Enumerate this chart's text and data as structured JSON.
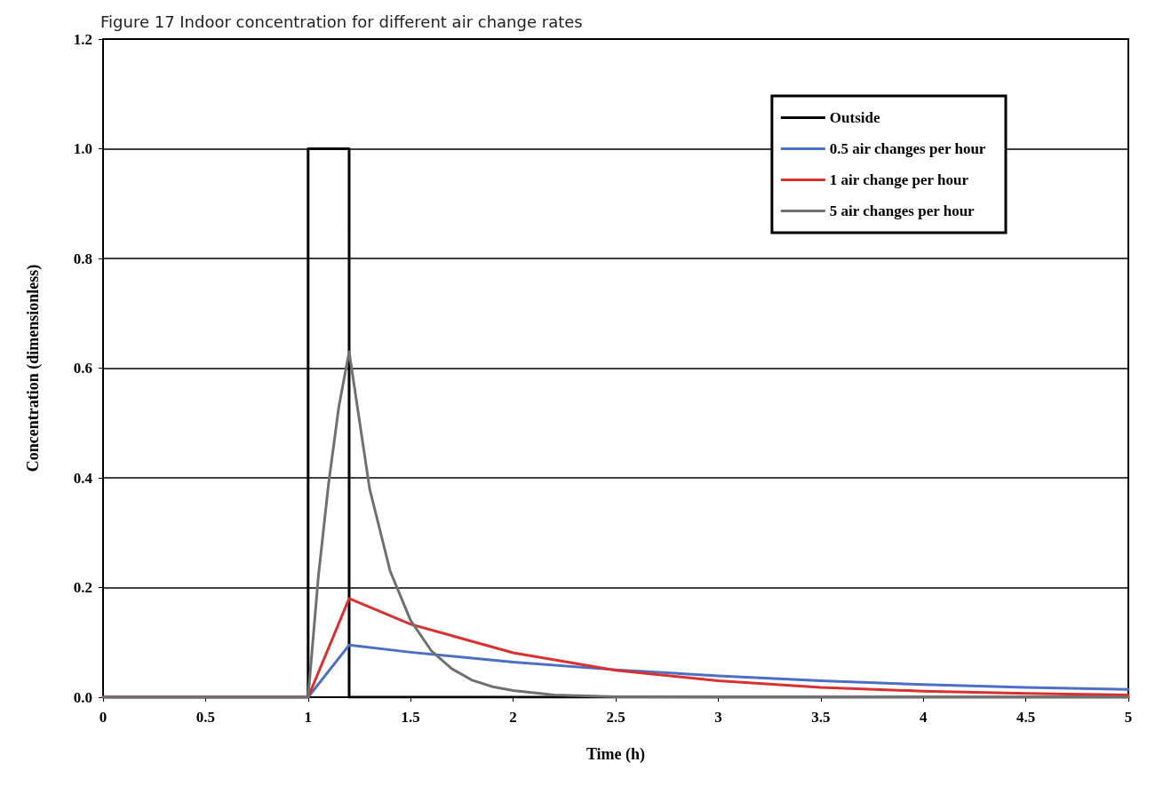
{
  "chart_data": {
    "type": "line",
    "title": "Figure 17 Indoor concentration for different air change rates",
    "xlabel": "Time (h)",
    "ylabel": "Concentration (dimensionless)",
    "xlim": [
      0,
      5
    ],
    "xticks": [
      0,
      0.5,
      1,
      1.5,
      2,
      2.5,
      3,
      3.5,
      4,
      4.5,
      5
    ],
    "ylim": [
      0,
      1.2
    ],
    "yticks": [
      {
        "value": 0,
        "label": "0.0"
      },
      {
        "value": 0.2,
        "label": "0.2"
      },
      {
        "value": 0.4,
        "label": "0.4"
      },
      {
        "value": 0.6,
        "label": "0.6"
      },
      {
        "value": 0.8,
        "label": "0.8"
      },
      {
        "value": 1,
        "label": "1.0"
      },
      {
        "value": 1.2,
        "label": "1.2"
      }
    ],
    "grid": "y",
    "legend": "top right",
    "marker": "none",
    "line_style": "solid",
    "series": [
      {
        "name": "Outside",
        "color": "#000000",
        "x": [
          0,
          1,
          1,
          1.2,
          1.2,
          5
        ],
        "values": [
          0,
          0,
          1,
          1,
          0,
          0
        ]
      },
      {
        "name": "0.5 air changes per hour",
        "color": "#4a6fc4",
        "x": [
          0,
          1,
          1.2,
          1.5,
          2,
          2.5,
          3,
          3.5,
          4,
          4.5,
          5
        ],
        "values": [
          0,
          0,
          0.095,
          0.082,
          0.064,
          0.05,
          0.039,
          0.03,
          0.023,
          0.018,
          0.014
        ]
      },
      {
        "name": "1 air change per hour",
        "color": "#d93030",
        "x": [
          0,
          1,
          1.2,
          1.5,
          2,
          2.5,
          3,
          3.5,
          4,
          4.5,
          5
        ],
        "values": [
          0,
          0,
          0.18,
          0.133,
          0.081,
          0.049,
          0.03,
          0.018,
          0.011,
          0.007,
          0.004
        ]
      },
      {
        "name": "5 air changes per hour",
        "color": "#707070",
        "x": [
          0,
          1,
          1.05,
          1.1,
          1.15,
          1.2,
          1.3,
          1.4,
          1.5,
          1.6,
          1.7,
          1.8,
          1.9,
          2,
          2.2,
          2.5,
          3,
          5
        ],
        "values": [
          0,
          0,
          0.22,
          0.39,
          0.53,
          0.63,
          0.38,
          0.23,
          0.14,
          0.085,
          0.052,
          0.031,
          0.019,
          0.012,
          0.004,
          0.001,
          0,
          0
        ]
      }
    ]
  }
}
